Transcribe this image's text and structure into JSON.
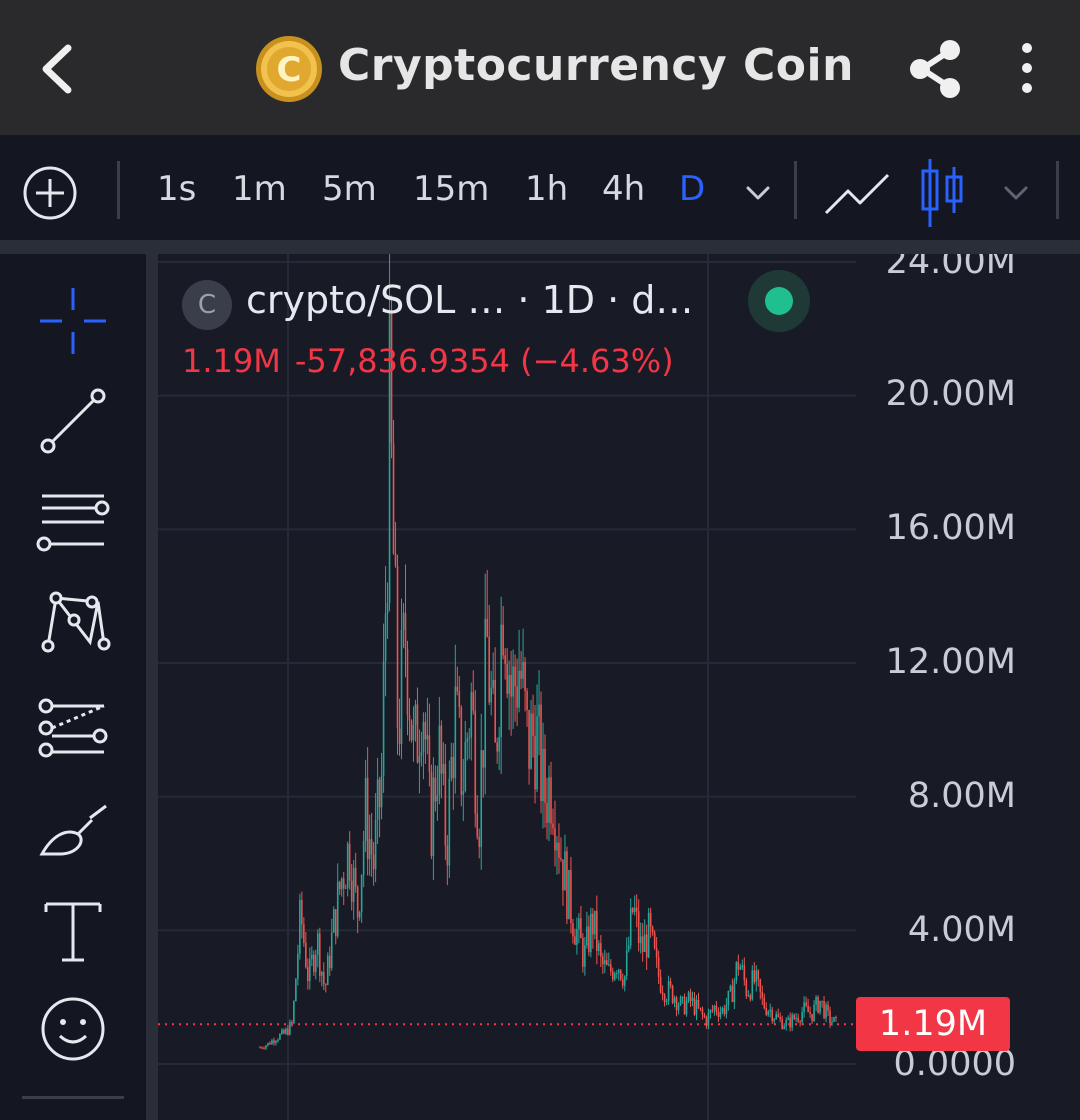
{
  "header": {
    "title": "Cryptocurrency Coin",
    "coin_logo_letter": "C",
    "icons": {
      "back": "back-arrow-icon",
      "share": "share-icon",
      "more": "more-vertical-icon"
    }
  },
  "toolbar": {
    "timeframes": [
      "1s",
      "1m",
      "5m",
      "15m",
      "1h",
      "4h",
      "D"
    ],
    "active_timeframe": "D",
    "accent_color": "#2962ff"
  },
  "tools": [
    "crosshair-icon",
    "trend-line-icon",
    "horizontal-lines-icon",
    "pattern-icon",
    "fib-retracement-icon",
    "brush-icon",
    "text-icon",
    "emoji-icon"
  ],
  "legend": {
    "logo_letter": "C",
    "title": "crypto/SOL …  · 1D · d…",
    "last_value": "1.19M",
    "change": "-57,836.9354 (−4.63%)"
  },
  "price_tag": "1.19M",
  "chart_data": {
    "type": "candlestick",
    "y_ticks": [
      "24.00M",
      "20.00M",
      "16.00M",
      "12.00M",
      "8.00M",
      "4.00M",
      "0.0000"
    ],
    "ylim": [
      0,
      24000000
    ],
    "current_price": 1190000,
    "colors": {
      "up": "#26a69a",
      "down": "#ef5350",
      "last_price_line": "#f23645"
    },
    "grid": true,
    "approx_close_trajectory_millions": [
      0.5,
      0.6,
      0.8,
      0.9,
      1.2,
      4.5,
      2.5,
      3.8,
      2.2,
      4.0,
      5.5,
      6.5,
      4.5,
      7.5,
      6.0,
      8.5,
      19.5,
      10.0,
      13.0,
      9.0,
      11.5,
      7.0,
      9.5,
      6.5,
      10.5,
      8.5,
      11.0,
      7.5,
      12.5,
      9.0,
      14.5,
      11.0,
      12.0,
      9.5,
      10.0,
      8.0,
      8.5,
      6.5,
      5.0,
      4.0,
      3.2,
      4.3,
      3.0,
      2.7,
      3.1,
      2.6,
      4.7,
      3.4,
      3.9,
      2.7,
      2.2,
      2.1,
      1.7,
      1.9,
      1.6,
      1.3,
      1.7,
      1.6,
      2.0,
      3.1,
      2.2,
      2.5,
      1.8,
      1.6,
      1.3,
      1.2,
      1.4,
      1.6,
      1.5,
      1.9,
      1.4,
      1.2
    ]
  }
}
